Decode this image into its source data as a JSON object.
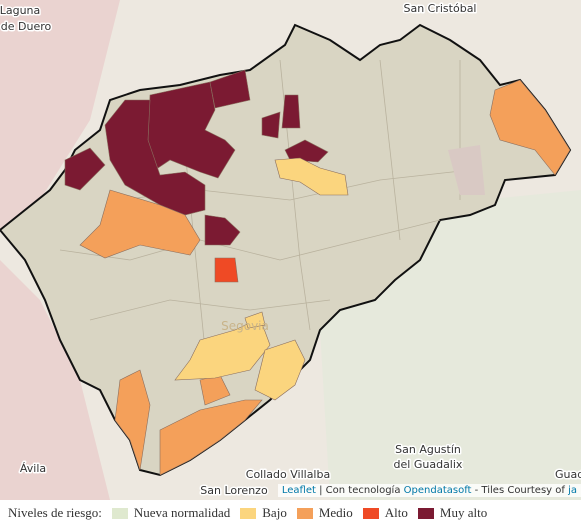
{
  "places": [
    "Laguna",
    "de Duero",
    "San Cristóbal",
    "Segovia",
    "San Agustín",
    "del Guadalix",
    "Collado Villalba",
    "Ávila",
    "San Lorenzo",
    "Guad"
  ],
  "attribution": {
    "leaflet": "Leaflet",
    "powered": " | Con tecnología ",
    "provider": "Opendatasoft",
    "tiles": " - Tiles Courtesy of ",
    "tiles_link": "ja"
  },
  "legend": {
    "title": "Niveles de riesgo:",
    "items": [
      {
        "label": "Nueva normalidad",
        "color": "#dfe9cf"
      },
      {
        "label": "Bajo",
        "color": "#fbd57e"
      },
      {
        "label": "Medio",
        "color": "#f4a05a"
      },
      {
        "label": "Alto",
        "color": "#ef4a25"
      },
      {
        "label": "Muy alto",
        "color": "#7b1a32"
      }
    ]
  }
}
